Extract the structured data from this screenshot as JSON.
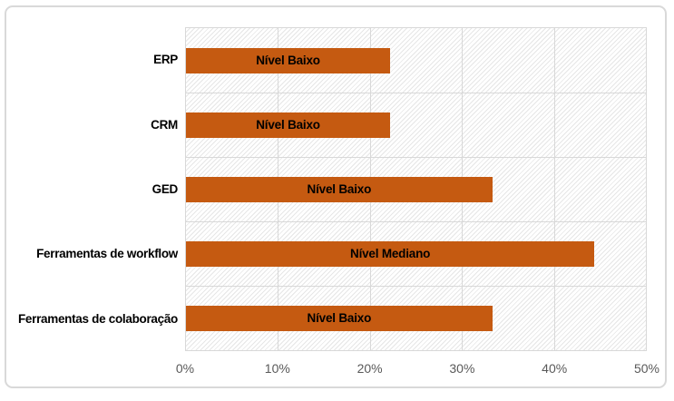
{
  "chart_data": {
    "type": "bar",
    "orientation": "horizontal",
    "title": "",
    "categories": [
      "ERP",
      "CRM",
      "GED",
      "Ferramentas de workflow",
      "Ferramentas de colaboração"
    ],
    "values": [
      22.2,
      22.2,
      33.3,
      44.4,
      33.3
    ],
    "bar_labels": [
      "Nível Baixo",
      "Nível Baixo",
      "Nível Baixo",
      "Nível Mediano",
      "Nível Baixo"
    ],
    "x_tick_labels": [
      "0%",
      "10%",
      "20%",
      "30%",
      "40%",
      "50%"
    ],
    "xlim": [
      0,
      50
    ],
    "xlabel": "",
    "ylabel": "",
    "grid": true,
    "legend": false,
    "colors": {
      "bar": "#C55A11",
      "grid": "#D8D8D8",
      "axis_text": "#595959",
      "label_text": "#000000",
      "hatch": "#E6E6E6",
      "frame_border": "#D9D9D9",
      "background": "#FFFFFF"
    }
  }
}
